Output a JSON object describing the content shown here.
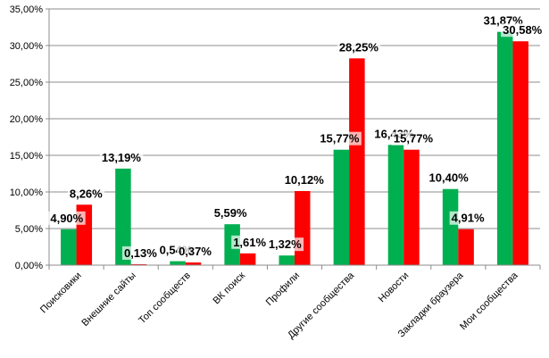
{
  "chart_data": {
    "type": "bar",
    "categories": [
      "Поисковики",
      "Внешние сайты",
      "Топ сообществ",
      "ВК поиск",
      "Профили",
      "Другие сообщества",
      "Новости",
      "Закладки браузера",
      "Мои сообщества"
    ],
    "series": [
      {
        "color": "#00b050",
        "values": [
          4.9,
          13.19,
          0.54,
          5.59,
          1.32,
          15.77,
          16.43,
          10.4,
          31.87
        ],
        "labels": [
          "4,90%",
          "13,19%",
          "0,54%",
          "5,59%",
          "1,32%",
          "15,77%",
          "16,43%",
          "10,40%",
          "31,87%"
        ]
      },
      {
        "color": "#ff0000",
        "values": [
          8.26,
          0.13,
          0.37,
          1.61,
          10.12,
          28.25,
          15.77,
          4.91,
          30.58
        ],
        "labels": [
          "8,26%",
          "0,13%",
          "0,37%",
          "1,61%",
          "10,12%",
          "28,25%",
          "15,77%",
          "4,91%",
          "30,58%"
        ]
      }
    ],
    "ylim": [
      0,
      35
    ],
    "yticks": [
      "0,00%",
      "5,00%",
      "10,00%",
      "15,00%",
      "20,00%",
      "25,00%",
      "30,00%",
      "35,00%"
    ],
    "grid": true,
    "legend": "none"
  }
}
